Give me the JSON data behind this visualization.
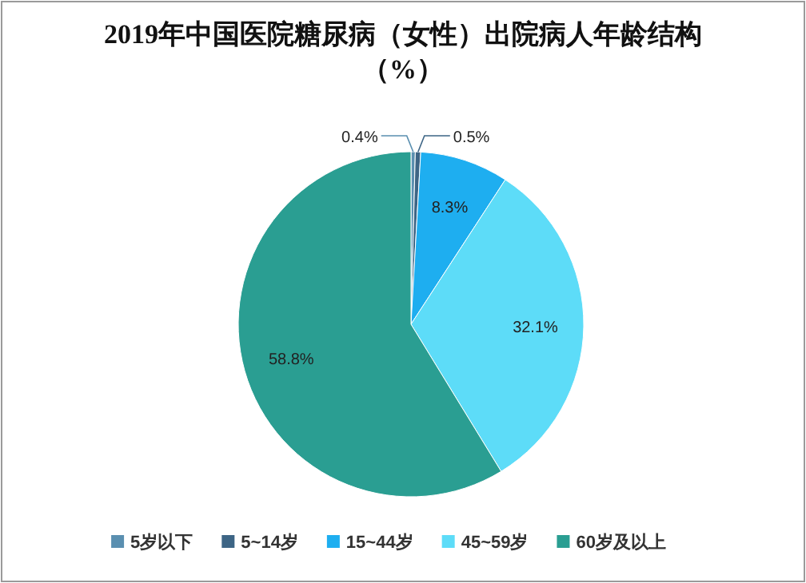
{
  "chart_data": {
    "type": "pie",
    "title": "2019年中国医院糖尿病（女性）出院病人年龄结构（%）",
    "categories": [
      "5岁以下",
      "5~14岁",
      "15~44岁",
      "45~59岁",
      "60岁及以上"
    ],
    "values": [
      0.4,
      0.5,
      8.3,
      32.1,
      58.8
    ],
    "colors": [
      "#5a8fb0",
      "#3d6585",
      "#1eaef0",
      "#5ddcf8",
      "#2a9e92"
    ],
    "value_labels": [
      "0.4%",
      "0.5%",
      "8.3%",
      "32.1%",
      "58.8%"
    ],
    "legend": "bottom"
  }
}
